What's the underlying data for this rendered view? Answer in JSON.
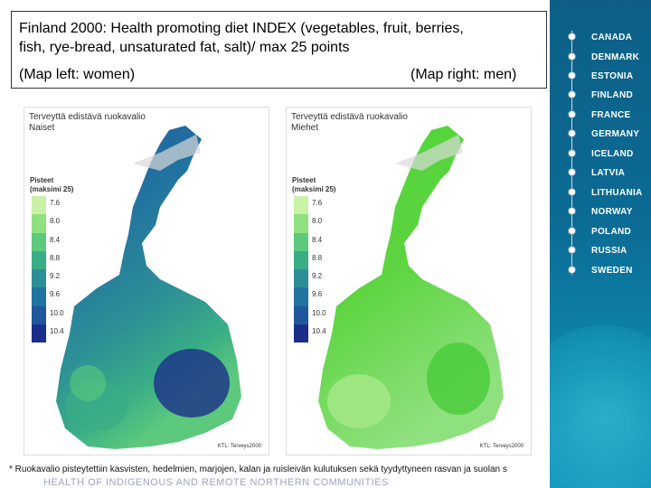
{
  "title": {
    "line1": "Finland 2000: Health promoting diet INDEX (vegetables, fruit, berries,",
    "line2": "fish, rye-bread, unsaturated fat, salt)/ max 25 points",
    "caption_left": "(Map left: women)",
    "caption_right": "(Map right: men)"
  },
  "map_left": {
    "title_line1": "Terveyttä edistävä ruokavalio",
    "title_line2": "Naiset",
    "legend_title_line1": "Pisteet",
    "legend_title_line2": "(maksimi 25)",
    "legend": [
      "7.6",
      "8.0",
      "8.4",
      "8.8",
      "9.2",
      "9.6",
      "10.0",
      "10.4"
    ],
    "colors": [
      "#c9f2a6",
      "#8fe07e",
      "#5cc97d",
      "#39ad86",
      "#2d8f96",
      "#2273a0",
      "#1f579c",
      "#1b2f8a"
    ],
    "credit": "KTL: Terveys2000"
  },
  "map_right": {
    "title_line1": "Terveyttä edistävä ruokavalio",
    "title_line2": "Miehet",
    "legend_title_line1": "Pisteet",
    "legend_title_line2": "(maksimi 25)",
    "legend": [
      "7.6",
      "8.0",
      "8.4",
      "8.8",
      "9.2",
      "9.6",
      "10.0",
      "10.4"
    ],
    "colors": [
      "#c9f2a6",
      "#8fe07e",
      "#5cc97d",
      "#39ad86",
      "#2d8f96",
      "#2273a0",
      "#1f579c",
      "#1b2f8a"
    ],
    "credit": "KTL: Terveys2000"
  },
  "footnote": "* Ruokavalio pisteytettiin kasvisten, hedelmien, marjojen, kalan ja ruisleivän kulutuksen sekä tyydyttyneen rasvan ja suolan s",
  "footer_strip": "HEALTH OF INDIGENOUS AND REMOTE NORTHERN COMMUNITIES",
  "nav": {
    "countries": [
      "CANADA",
      "DENMARK",
      "ESTONIA",
      "FINLAND",
      "FRANCE",
      "GERMANY",
      "ICELAND",
      "LATVIA",
      "LITHUANIA",
      "NORWAY",
      "POLAND",
      "RUSSIA",
      "SWEDEN"
    ]
  }
}
